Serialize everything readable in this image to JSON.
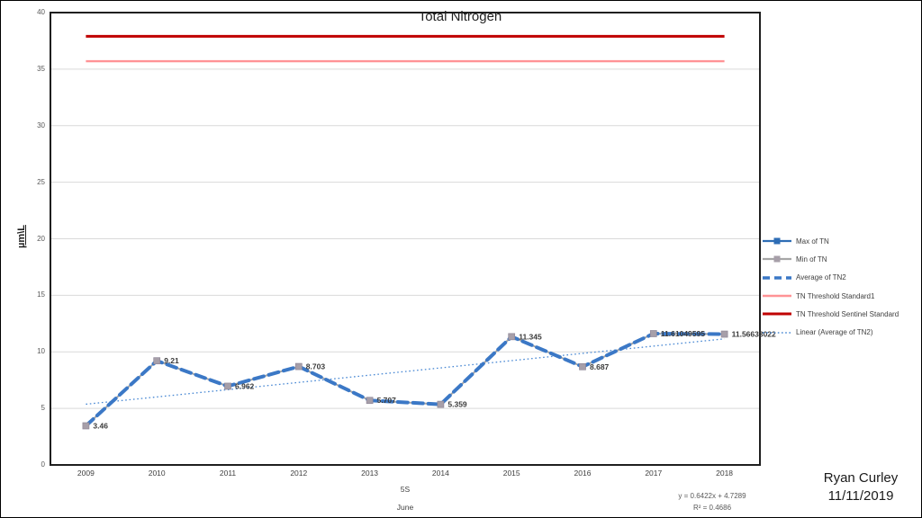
{
  "chart_data": {
    "type": "line",
    "title": "Total Nitrogen",
    "ylabel": "µm\\L",
    "xlabel_fields": [
      "5S",
      "June"
    ],
    "categories": [
      "2009",
      "2010",
      "2011",
      "2012",
      "2013",
      "2014",
      "2015",
      "2016",
      "2017",
      "2018"
    ],
    "ylim": [
      0,
      40
    ],
    "y_ticks": [
      0,
      5,
      10,
      15,
      20,
      25,
      30,
      35,
      40
    ],
    "grid": "horizontal",
    "legend_position": "right",
    "series": [
      {
        "name": "Max of TN",
        "type": "line-markers",
        "color": "#2E6DB5",
        "values": [
          3.46,
          9.21,
          6.962,
          8.703,
          5.707,
          5.359,
          11.345,
          8.687,
          11.61049595,
          11.56633022
        ]
      },
      {
        "name": "Min of TN",
        "type": "line-markers",
        "color": "#A6A6A6",
        "values": [
          3.46,
          9.21,
          6.962,
          8.703,
          5.707,
          5.359,
          11.345,
          8.687,
          11.61049595,
          11.56633022
        ]
      },
      {
        "name": "Average of TN2",
        "type": "dashed-line",
        "color": "#3B78C6",
        "values": [
          3.46,
          9.21,
          6.962,
          8.703,
          5.707,
          5.359,
          11.345,
          8.687,
          11.61049595,
          11.56633022
        ]
      },
      {
        "name": "TN Threshold Standard1",
        "type": "threshold",
        "color": "#FF9396",
        "value": 35.7
      },
      {
        "name": "TN Threshold Sentinel Standard",
        "type": "threshold",
        "color": "#C00000",
        "value": 37.9
      },
      {
        "name": "Linear (Average of TN2)",
        "type": "trendline",
        "color": "#4A89D4",
        "slope": 0.6422,
        "intercept": 4.7289
      }
    ],
    "data_labels": [
      "3.46",
      "9.21",
      "6.962",
      "8.703",
      "5.707",
      "5.359",
      "11.345",
      "8.687",
      "11.61049595",
      "11.56633022"
    ]
  },
  "legend": {
    "items": [
      {
        "label": "Max of TN"
      },
      {
        "label": "Min of TN"
      },
      {
        "label": "Average of TN2"
      },
      {
        "label": "TN Threshold Standard1"
      },
      {
        "label": "TN Threshold Sentinel Standard"
      },
      {
        "label": "Linear (Average of TN2)"
      }
    ]
  },
  "annotations": {
    "equation": "y = 0.6422x + 4.7289",
    "r_squared": "R² = 0.4686",
    "author": "Ryan Curley",
    "date": "11/11/2019"
  }
}
